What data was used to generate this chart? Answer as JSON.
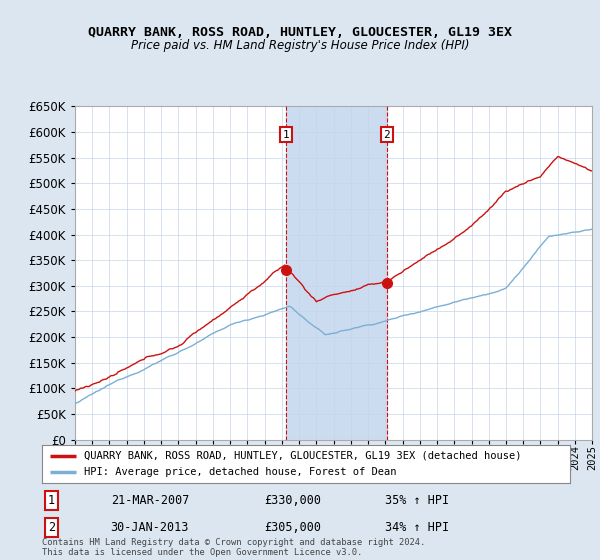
{
  "title": "QUARRY BANK, ROSS ROAD, HUNTLEY, GLOUCESTER, GL19 3EX",
  "subtitle": "Price paid vs. HM Land Registry's House Price Index (HPI)",
  "legend_line1": "QUARRY BANK, ROSS ROAD, HUNTLEY, GLOUCESTER, GL19 3EX (detached house)",
  "legend_line2": "HPI: Average price, detached house, Forest of Dean",
  "annotation1_label": "1",
  "annotation1_date": "21-MAR-2007",
  "annotation1_price": "£330,000",
  "annotation1_hpi": "35% ↑ HPI",
  "annotation2_label": "2",
  "annotation2_date": "30-JAN-2013",
  "annotation2_price": "£305,000",
  "annotation2_hpi": "34% ↑ HPI",
  "footer": "Contains HM Land Registry data © Crown copyright and database right 2024.\nThis data is licensed under the Open Government Licence v3.0.",
  "sale1_year": 2007.22,
  "sale1_value": 330000,
  "sale2_year": 2013.08,
  "sale2_value": 305000,
  "hpi_color": "#7bafd4",
  "property_color": "#cc1111",
  "background_color": "#dce6f1",
  "plot_bg_color": "#ffffff",
  "grid_color": "#c8d4e8",
  "annotation_box_color": "#cc1111",
  "highlight_color": "#ccdcf0",
  "ylim_min": 0,
  "ylim_max": 650000,
  "ytick_step": 50000,
  "xmin": 1995,
  "xmax": 2025,
  "xlabel_fontsize": 7.5,
  "ylabel_fontsize": 8.5,
  "title_fontsize": 9.5,
  "subtitle_fontsize": 8.5
}
